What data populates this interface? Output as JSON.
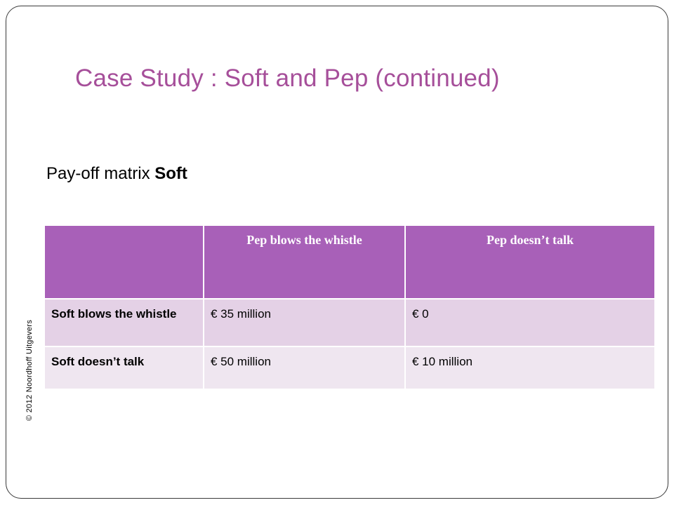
{
  "slide": {
    "title": "Case Study : Soft and Pep (continued)",
    "subtitle_prefix": "Pay-off matrix ",
    "subtitle_bold": "Soft",
    "copyright": "© 2012 Noordhoff Uitgevers"
  },
  "matrix": {
    "headers": [
      "",
      "Pep blows the whistle",
      "Pep doesn’t talk"
    ],
    "rows": [
      {
        "label": "Soft blows the whistle",
        "cells": [
          "€ 35 million",
          "€ 0"
        ]
      },
      {
        "label": "Soft doesn’t talk",
        "cells": [
          "€ 50 million",
          "€ 10 million"
        ]
      }
    ]
  },
  "colors": {
    "title": "#a64f9a",
    "header_bg": "#a860b8",
    "row1_bg": "#e4d1e6",
    "row2_bg": "#efe6f0",
    "frame": "#3a3a3a"
  }
}
